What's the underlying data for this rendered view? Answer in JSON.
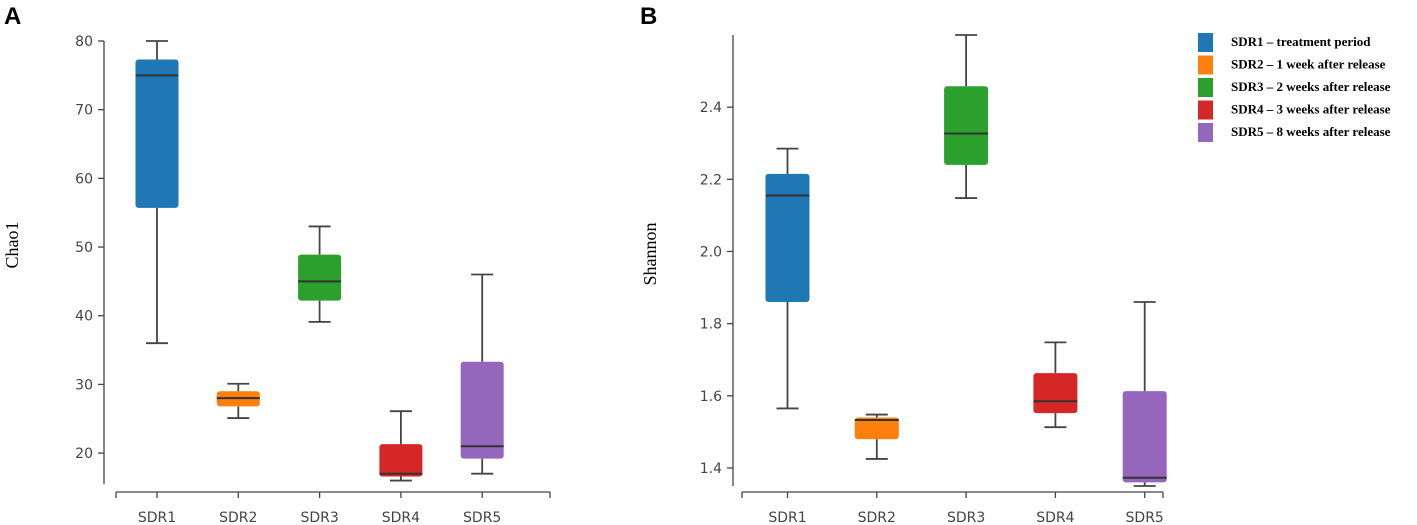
{
  "panels": {
    "a": {
      "letter": "A"
    },
    "b": {
      "letter": "B"
    }
  },
  "legend": {
    "entries": [
      {
        "label": "SDR1 – treatment period",
        "color": "#1f77b4"
      },
      {
        "label": "SDR2 – 1 week after release",
        "color": "#ff7f0e"
      },
      {
        "label": "SDR3 – 2 weeks after release",
        "color": "#2ca02c"
      },
      {
        "label": "SDR4 – 3 weeks after release",
        "color": "#d62728"
      },
      {
        "label": "SDR5 – 8 weeks after release",
        "color": "#9467bd"
      }
    ]
  },
  "chart_data": [
    {
      "type": "box",
      "panel": "A",
      "ylabel": "Chao1",
      "xlabel": "",
      "categories": [
        "SDR1",
        "SDR2",
        "SDR3",
        "SDR4",
        "SDR5"
      ],
      "yticks": [
        20,
        30,
        40,
        50,
        60,
        70,
        80
      ],
      "ylim": [
        15.5,
        80
      ],
      "colors": [
        "#1f77b4",
        "#ff7f0e",
        "#2ca02c",
        "#d62728",
        "#9467bd"
      ],
      "boxes": [
        {
          "min": 36,
          "q1": 55.7,
          "median": 75,
          "q3": 77.3,
          "max": 80
        },
        {
          "min": 25.1,
          "q1": 26.8,
          "median": 28,
          "q3": 29,
          "max": 30.1
        },
        {
          "min": 39.1,
          "q1": 42.2,
          "median": 45,
          "q3": 48.9,
          "max": 53
        },
        {
          "min": 16,
          "q1": 16.6,
          "median": 17,
          "q3": 21.3,
          "max": 26.1
        },
        {
          "min": 17,
          "q1": 19.2,
          "median": 21,
          "q3": 33.3,
          "max": 46
        }
      ]
    },
    {
      "type": "box",
      "panel": "B",
      "ylabel": "Shannon",
      "xlabel": "",
      "categories": [
        "SDR1",
        "SDR2",
        "SDR3",
        "SDR4",
        "SDR5"
      ],
      "yticks": [
        1.4,
        1.6,
        1.8,
        2.0,
        2.2,
        2.4
      ],
      "ytick_labels": [
        "1.4",
        "1.6",
        "1.8",
        "2.0",
        "2.2",
        "2.4"
      ],
      "ylim": [
        1.35,
        2.6
      ],
      "colors": [
        "#1f77b4",
        "#ff7f0e",
        "#2ca02c",
        "#d62728",
        "#9467bd"
      ],
      "boxes": [
        {
          "min": 1.565,
          "q1": 1.86,
          "median": 2.155,
          "q3": 2.215,
          "max": 2.285
        },
        {
          "min": 1.425,
          "q1": 1.48,
          "median": 1.533,
          "q3": 1.54,
          "max": 1.548
        },
        {
          "min": 2.148,
          "q1": 2.24,
          "median": 2.327,
          "q3": 2.458,
          "max": 2.6
        },
        {
          "min": 1.513,
          "q1": 1.552,
          "median": 1.585,
          "q3": 1.663,
          "max": 1.748
        },
        {
          "min": 1.35,
          "q1": 1.36,
          "median": 1.373,
          "q3": 1.613,
          "max": 1.86
        }
      ]
    }
  ]
}
